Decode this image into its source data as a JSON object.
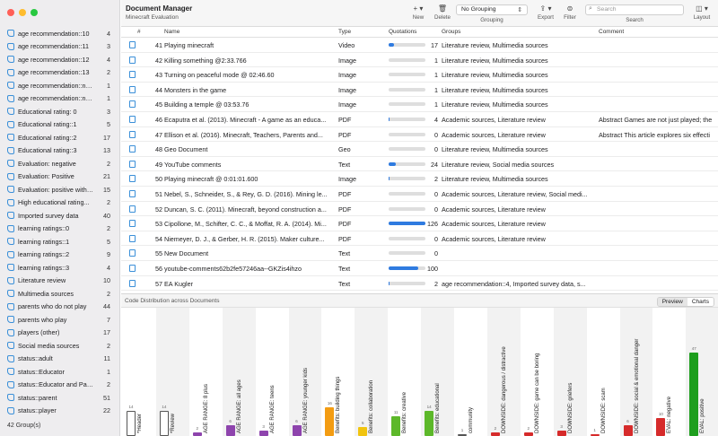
{
  "window": {
    "title": "Document Manager",
    "subtitle": "Minecraft Evaluation"
  },
  "toolbar": {
    "new_label": "New",
    "delete_label": "Delete",
    "grouping_value": "No Grouping",
    "grouping_label": "Grouping",
    "export_label": "Export",
    "filter_label": "Filter",
    "search_placeholder": "Search",
    "search_label": "Search",
    "layout_label": "Layout"
  },
  "sidebar": {
    "footer": "42 Group(s)",
    "items": [
      {
        "label": "age recommendation::10",
        "count": "4"
      },
      {
        "label": "age recommendation::11",
        "count": "3"
      },
      {
        "label": "age recommendation::12",
        "count": "4"
      },
      {
        "label": "age recommendation::13",
        "count": "2"
      },
      {
        "label": "age recommendation::no r...",
        "count": "1"
      },
      {
        "label": "age recommendation::not...",
        "count": "1"
      },
      {
        "label": "Educational rating: 0",
        "count": "3"
      },
      {
        "label": "Educational rating::1",
        "count": "5"
      },
      {
        "label": "Educational rating::2",
        "count": "17"
      },
      {
        "label": "Educational rating::3",
        "count": "13"
      },
      {
        "label": "Evaluation: negative",
        "count": "2"
      },
      {
        "label": "Evaluation: Positive",
        "count": "21"
      },
      {
        "label": "Evaluation: positive with l...",
        "count": "15"
      },
      {
        "label": "High educational rating...",
        "count": "2"
      },
      {
        "label": "Imported survey data",
        "count": "40"
      },
      {
        "label": "learning ratings::0",
        "count": "2"
      },
      {
        "label": "learning ratings::1",
        "count": "5"
      },
      {
        "label": "learning ratings::2",
        "count": "9"
      },
      {
        "label": "learning ratings::3",
        "count": "4"
      },
      {
        "label": "Literature review",
        "count": "10"
      },
      {
        "label": "Multimedia sources",
        "count": "2"
      },
      {
        "label": "parents who do not play",
        "count": "44"
      },
      {
        "label": "parents who play",
        "count": "7"
      },
      {
        "label": "players (other)",
        "count": "17"
      },
      {
        "label": "Social media sources",
        "count": "2"
      },
      {
        "label": "status::adult",
        "count": "11"
      },
      {
        "label": "status::Educator",
        "count": "1"
      },
      {
        "label": "status::Educator and Parent",
        "count": "2"
      },
      {
        "label": "status::parent",
        "count": "51"
      },
      {
        "label": "status::player",
        "count": "22"
      }
    ]
  },
  "table": {
    "headers": {
      "num": "#",
      "name": "Name",
      "type": "Type",
      "quotations": "Quotations",
      "groups": "Groups",
      "comment": "Comment"
    },
    "rows": [
      {
        "num": "41",
        "name": "Playing minecraft",
        "type": "Video",
        "quotations": 17,
        "groups": "Literature review, Multimedia sources",
        "comment": ""
      },
      {
        "num": "42",
        "name": "Killing something @2:33.766",
        "type": "Image",
        "quotations": 1,
        "groups": "Literature review, Multimedia sources",
        "comment": ""
      },
      {
        "num": "43",
        "name": "Turning on peaceful mode @ 02:46.60",
        "type": "Image",
        "quotations": 1,
        "groups": "Literature review, Multimedia sources",
        "comment": ""
      },
      {
        "num": "44",
        "name": "Monsters in the game",
        "type": "Image",
        "quotations": 1,
        "groups": "Literature review, Multimedia sources",
        "comment": ""
      },
      {
        "num": "45",
        "name": "Building a temple @ 03:53.76",
        "type": "Image",
        "quotations": 1,
        "groups": "Literature review, Multimedia sources",
        "comment": ""
      },
      {
        "num": "46",
        "name": "Ecaputra et al. (2013). Minecraft - A game as an educa...",
        "type": "PDF",
        "quotations": 4,
        "groups": "Academic sources, Literature review",
        "comment": "Abstract  Games are not just played; the"
      },
      {
        "num": "47",
        "name": "Ellison et al. (2016). Minecraft, Teachers, Parents and...",
        "type": "PDF",
        "quotations": 0,
        "groups": "Academic sources, Literature review",
        "comment": "Abstract This article explores six effecti"
      },
      {
        "num": "48",
        "name": "Geo Document",
        "type": "Geo",
        "quotations": 0,
        "groups": "Literature review, Multimedia sources",
        "comment": ""
      },
      {
        "num": "49",
        "name": "YouTube comments",
        "type": "Text",
        "quotations": 24,
        "groups": "Literature review, Social media sources",
        "comment": ""
      },
      {
        "num": "50",
        "name": "Playing minecraft @ 0:01:01.600",
        "type": "Image",
        "quotations": 2,
        "groups": "Literature review, Multimedia sources",
        "comment": ""
      },
      {
        "num": "51",
        "name": "Nebel, S., Schneider, S., & Rey, G. D. (2016). Mining le...",
        "type": "PDF",
        "quotations": 0,
        "groups": "Academic sources, Literature review, Social medi...",
        "comment": ""
      },
      {
        "num": "52",
        "name": "Duncan, S. C. (2011). Minecraft, beyond construction a...",
        "type": "PDF",
        "quotations": 0,
        "groups": "Academic sources, Literature review",
        "comment": ""
      },
      {
        "num": "53",
        "name": "Cipollone, M., Schifter, C. C., & Moffat, R. A. (2014). Mi...",
        "type": "PDF",
        "quotations": 126,
        "groups": "Academic sources, Literature review",
        "comment": ""
      },
      {
        "num": "54",
        "name": "Niemeyer, D. J., & Gerber, H. R. (2015). Maker culture...",
        "type": "PDF",
        "quotations": 0,
        "groups": "Academic sources, Literature review",
        "comment": ""
      },
      {
        "num": "55",
        "name": "New Document",
        "type": "Text",
        "quotations": 0,
        "groups": "",
        "comment": ""
      },
      {
        "num": "56",
        "name": "youtube-comments62b2fe57246aa--GKZis4ihzo",
        "type": "Text",
        "quotations": 100,
        "groups": "",
        "comment": ""
      },
      {
        "num": "57",
        "name": "EA Kugler",
        "type": "Text",
        "quotations": 2,
        "groups": "age recommendation::4, Imported survey data, s...",
        "comment": ""
      }
    ]
  },
  "chart_panel": {
    "title": "Code Distribution across Documents",
    "tab_preview": "Preview",
    "tab_charts": "Charts"
  },
  "chart_data": {
    "type": "bar",
    "ylim": [
      0,
      47
    ],
    "categories": [
      "*Header",
      "*Review",
      "AGE RANGE: 8 plus",
      "AGE RANGE: all ages",
      "AGE RANGE: teens",
      "AGE RANGE: younger kids",
      "Benefits: building things",
      "Benefits: collaboration",
      "Benefits: creative",
      "Benefits: educational",
      "community",
      "DOWNSIDE: dangerous / distractive",
      "DOWNSIDE: game can be boring",
      "DOWNSIDE: griefers",
      "DOWNSIDE: scam",
      "DOWNSIDE: social & emotional danger",
      "EVAL: negative",
      "EVAL: positive"
    ],
    "values": [
      14,
      14,
      2,
      6,
      3,
      6,
      16,
      5,
      11,
      14,
      1,
      2,
      2,
      3,
      1,
      6,
      10,
      47
    ],
    "colors": [
      "#ffffff",
      "#ffffff",
      "#8e44ad",
      "#8e44ad",
      "#8e44ad",
      "#8e44ad",
      "#f39c12",
      "#f1c40f",
      "#5db82a",
      "#5db82a",
      "#ffffff",
      "#d62b2b",
      "#d62b2b",
      "#d62b2b",
      "#d62b2b",
      "#d62b2b",
      "#d62b2b",
      "#1e9e1e"
    ]
  }
}
